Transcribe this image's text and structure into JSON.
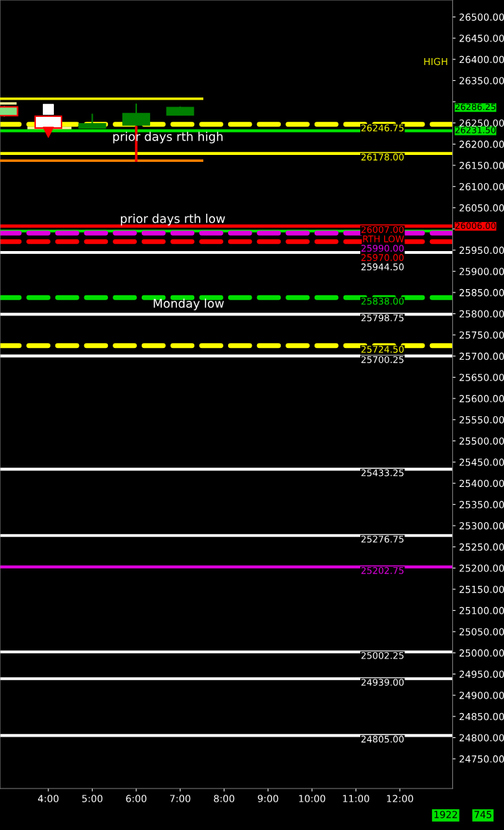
{
  "chart_data": {
    "type": "candlestick",
    "x": [
      3.0,
      4.0,
      5.0,
      6.0,
      7.0
    ],
    "ohlc": [
      [
        26267,
        26288,
        26267,
        26288
      ],
      [
        26266,
        26266,
        26238,
        26238
      ],
      [
        26238,
        26270,
        26238,
        26248
      ],
      [
        26245,
        26294,
        26245,
        26272
      ],
      [
        26269,
        26287,
        26269,
        26286.25
      ]
    ],
    "colors": [
      "#80e080",
      "#ffffff",
      "#008000",
      "#008000",
      "#008000"
    ],
    "series": [
      {
        "type": "line",
        "color": "#ffff00",
        "x": [
          2.9,
          7.5
        ],
        "values": [
          26307,
          26307
        ]
      },
      {
        "type": "line",
        "color": "#ff8000",
        "x": [
          2.9,
          7.5
        ],
        "values": [
          26161,
          26161
        ]
      },
      {
        "type": "line",
        "color": "#ffff99",
        "x": [
          2.9,
          3.25
        ],
        "values": [
          26296,
          26296
        ]
      },
      {
        "type": "line",
        "color": "#ffff99",
        "x": [
          3.55,
          4.5
        ],
        "values": [
          26238,
          26238
        ]
      },
      {
        "type": "line",
        "color": "#ff0000",
        "x": [
          6.0,
          6.0
        ],
        "values": [
          26161,
          26240
        ]
      },
      {
        "type": "scatter",
        "marker": "square",
        "color": "#ffffff",
        "x": [
          4.0
        ],
        "values": [
          26282
        ]
      },
      {
        "type": "scatter",
        "marker": "triangle",
        "color": "#ff0000",
        "x": [
          4.0
        ],
        "values": [
          26228
        ]
      }
    ],
    "ref_lines": [
      {
        "axis": "y",
        "value": 26246.75,
        "label": "26246.75",
        "color": "#ffff00",
        "line_style": "dashed"
      },
      {
        "axis": "y",
        "value": 26231.5,
        "label": null,
        "color": "#00e000",
        "line_style": "solid"
      },
      {
        "axis": "y",
        "value": 26178,
        "label": "26178.00",
        "color": "#ffff00",
        "line_style": "solid"
      },
      {
        "axis": "y",
        "value": 26006,
        "label": "RTH LOW",
        "color": "#ff0000",
        "line_style": "solid"
      },
      {
        "axis": "y",
        "value": 26007,
        "label": "26007.00",
        "color": "#ff0000",
        "line_style": "solid"
      },
      {
        "axis": "y",
        "value": 25995,
        "label": null,
        "color": "#00e000",
        "line_style": "solid"
      },
      {
        "axis": "y",
        "value": 25990,
        "label": "25990.00",
        "color": "#e000e0",
        "line_style": "dashed"
      },
      {
        "axis": "y",
        "value": 25970,
        "label": "25970.00",
        "color": "#ff0000",
        "line_style": "dashed"
      },
      {
        "axis": "y",
        "value": 25944.5,
        "label": "25944.50",
        "color": "#ffffff",
        "line_style": "solid"
      },
      {
        "axis": "y",
        "value": 25838,
        "label": "25838.00",
        "color": "#00e000",
        "line_style": "dashed"
      },
      {
        "axis": "y",
        "value": 25798.75,
        "label": "25798.75",
        "color": "#ffffff",
        "line_style": "solid"
      },
      {
        "axis": "y",
        "value": 25724.5,
        "label": "25724.50",
        "color": "#ffff00",
        "line_style": "dashed"
      },
      {
        "axis": "y",
        "value": 25700.25,
        "label": "25700.25",
        "color": "#ffffff",
        "line_style": "solid"
      },
      {
        "axis": "y",
        "value": 25433.25,
        "label": "25433.25",
        "color": "#ffffff",
        "line_style": "solid"
      },
      {
        "axis": "y",
        "value": 25276.75,
        "label": "25276.75",
        "color": "#ffffff",
        "line_style": "solid"
      },
      {
        "axis": "y",
        "value": 25202.75,
        "label": "25202.75",
        "color": "#e000e0",
        "line_style": "solid"
      },
      {
        "axis": "y",
        "value": 25002.25,
        "label": "25002.25",
        "color": "#ffffff",
        "line_style": "solid"
      },
      {
        "axis": "y",
        "value": 24939,
        "label": "24939.00",
        "color": "#ffffff",
        "line_style": "solid"
      },
      {
        "axis": "y",
        "value": 24805,
        "label": "24805.00",
        "color": "#ffffff",
        "line_style": "solid"
      }
    ],
    "annotations": [
      "HIGH",
      {
        "text": "prior days rth high",
        "x": 6.72,
        "y": 26231.5
      },
      {
        "text": "prior days rth low",
        "x": 6.83,
        "y": 26006
      },
      {
        "text": "Monday low",
        "x": 7.19,
        "y": 25838
      },
      "26286.25",
      {
        "text": "26231.50",
        "x": 13.2,
        "y": 26231.5
      },
      {
        "text": "26006.00",
        "x": 13.2,
        "y": 26006
      },
      "1922",
      "745"
    ],
    "xlim": [
      2.9,
      13.2
    ],
    "ylim": [
      24680,
      26540
    ],
    "xticks": [
      {
        "value": 4,
        "label": "4:00"
      },
      {
        "value": 5,
        "label": "5:00"
      },
      {
        "value": 6,
        "label": "6:00"
      },
      {
        "value": 7,
        "label": "7:00"
      },
      {
        "value": 8,
        "label": "8:00"
      },
      {
        "value": 9,
        "label": "9:00"
      },
      {
        "value": 10,
        "label": "10:00"
      },
      {
        "value": 11,
        "label": "11:00"
      },
      {
        "value": 12,
        "label": "12:00"
      }
    ],
    "yticks": [
      {
        "value": 24750,
        "label": "24750.00"
      },
      {
        "value": 24800,
        "label": "24800.00"
      },
      {
        "value": 24850,
        "label": "24850.00"
      },
      {
        "value": 24900,
        "label": "24900.00"
      },
      {
        "value": 24950,
        "label": "24950.00"
      },
      {
        "value": 25000,
        "label": "25000.00"
      },
      {
        "value": 25050,
        "label": "25050.00"
      },
      {
        "value": 25100,
        "label": "25100.00"
      },
      {
        "value": 25150,
        "label": "25150.00"
      },
      {
        "value": 25200,
        "label": "25200.00"
      },
      {
        "value": 25250,
        "label": "25250.00"
      },
      {
        "value": 25300,
        "label": "25300.00"
      },
      {
        "value": 25350,
        "label": "25350.00"
      },
      {
        "value": 25400,
        "label": "25400.00"
      },
      {
        "value": 25450,
        "label": "25450.00"
      },
      {
        "value": 25500,
        "label": "25500.00"
      },
      {
        "value": 25550,
        "label": "25550.00"
      },
      {
        "value": 25600,
        "label": "25600.00"
      },
      {
        "value": 25650,
        "label": "25650.00"
      },
      {
        "value": 25700,
        "label": "25700.00"
      },
      {
        "value": 25750,
        "label": "25750.00"
      },
      {
        "value": 25800,
        "label": "25800.00"
      },
      {
        "value": 25850,
        "label": "25850.00"
      },
      {
        "value": 25900,
        "label": "25900.00"
      },
      {
        "value": 25950,
        "label": "25950.00"
      },
      {
        "value": 26000,
        "label": null
      },
      {
        "value": 26050,
        "label": "26050.00"
      },
      {
        "value": 26100,
        "label": "26100.00"
      },
      {
        "value": 26150,
        "label": "26150.00"
      },
      {
        "value": 26200,
        "label": "26200.00"
      },
      {
        "value": 26250,
        "label": "26250.00"
      },
      {
        "value": 26300,
        "label": null
      },
      {
        "value": 26350,
        "label": "26350.00"
      },
      {
        "value": 26400,
        "label": "26400.00"
      },
      {
        "value": 26450,
        "label": "26450.00"
      },
      {
        "value": 26500,
        "label": "26500.00"
      }
    ],
    "legend": false
  }
}
